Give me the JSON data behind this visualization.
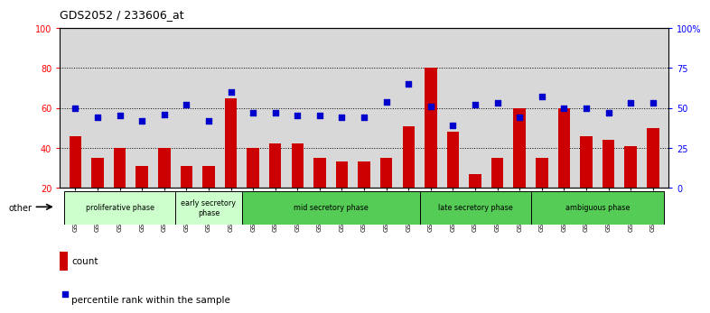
{
  "title": "GDS2052 / 233606_at",
  "samples": [
    "GSM109814",
    "GSM109815",
    "GSM109816",
    "GSM109817",
    "GSM109820",
    "GSM109821",
    "GSM109822",
    "GSM109824",
    "GSM109825",
    "GSM109826",
    "GSM109827",
    "GSM109828",
    "GSM109829",
    "GSM109830",
    "GSM109831",
    "GSM109834",
    "GSM109835",
    "GSM109836",
    "GSM109837",
    "GSM109838",
    "GSM109839",
    "GSM109818",
    "GSM109819",
    "GSM109823",
    "GSM109832",
    "GSM109833",
    "GSM109840"
  ],
  "counts": [
    46,
    35,
    40,
    31,
    40,
    31,
    31,
    65,
    40,
    42,
    42,
    35,
    33,
    33,
    35,
    51,
    80,
    48,
    27,
    35,
    60,
    35,
    60,
    46,
    44,
    41,
    50
  ],
  "percentiles": [
    50,
    44,
    45,
    42,
    46,
    52,
    42,
    60,
    47,
    47,
    45,
    45,
    44,
    44,
    54,
    65,
    51,
    39,
    52,
    53,
    44,
    57,
    50,
    50,
    47,
    53,
    53
  ],
  "ylim_left": [
    20,
    100
  ],
  "ylim_right": [
    0,
    100
  ],
  "bar_color": "#cc0000",
  "dot_color": "#0000cc",
  "bg_color": "#d8d8d8",
  "phases": [
    {
      "label": "proliferative phase",
      "start": 0,
      "end": 5,
      "color": "#ccffcc"
    },
    {
      "label": "early secretory\nphase",
      "start": 5,
      "end": 8,
      "color": "#ccffcc"
    },
    {
      "label": "mid secretory phase",
      "start": 8,
      "end": 16,
      "color": "#55cc55"
    },
    {
      "label": "late secretory phase",
      "start": 16,
      "end": 21,
      "color": "#55cc55"
    },
    {
      "label": "ambiguous phase",
      "start": 21,
      "end": 27,
      "color": "#55cc55"
    }
  ]
}
